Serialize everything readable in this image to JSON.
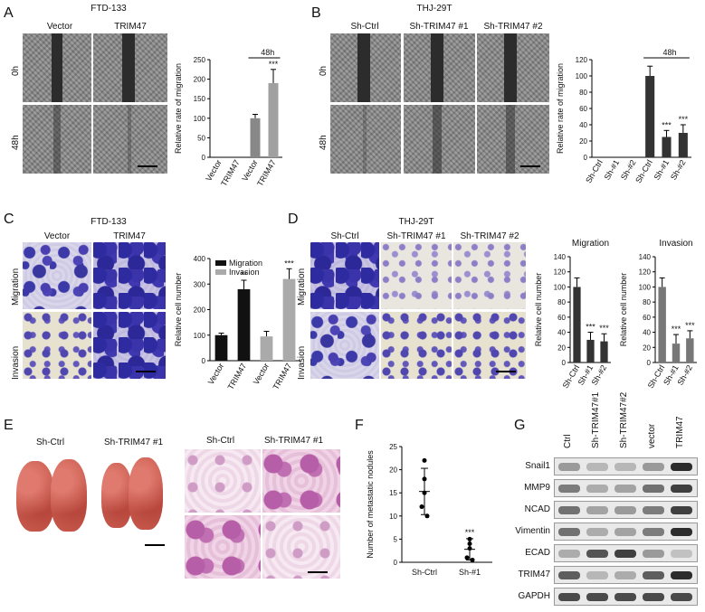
{
  "panels": {
    "A": {
      "letter": "A",
      "cell_line": "FTD-133",
      "col_labels": [
        "Vector",
        "TRIM47"
      ],
      "row_labels": [
        "0h",
        "48h"
      ],
      "chart_time": "48h"
    },
    "B": {
      "letter": "B",
      "cell_line": "THJ-29T",
      "col_labels": [
        "Sh-Ctrl",
        "Sh-TRIM47 #1",
        "Sh-TRIM47 #2"
      ],
      "row_labels": [
        "0h",
        "48h"
      ],
      "chart_time": "48h"
    },
    "C": {
      "letter": "C",
      "cell_line": "FTD-133",
      "col_labels": [
        "Vector",
        "TRIM47"
      ],
      "row_labels": [
        "Migration",
        "Invasion"
      ]
    },
    "D": {
      "letter": "D",
      "cell_line": "THJ-29T",
      "col_labels": [
        "Sh-Ctrl",
        "Sh-TRIM47 #1",
        "Sh-TRIM47 #2"
      ],
      "row_labels": [
        "Migration",
        "Invasion"
      ]
    },
    "E": {
      "letter": "E",
      "lung_labels": [
        "Sh-Ctrl",
        "Sh-TRIM47 #1"
      ],
      "he_labels": [
        "Sh-Ctrl",
        "Sh-TRIM47 #1"
      ]
    },
    "F": {
      "letter": "F"
    },
    "G": {
      "letter": "G",
      "lanes": [
        "Ctrl",
        "Sh-TRIM47#1",
        "Sh-TRIM47#2",
        "vector",
        "TRIM47"
      ],
      "proteins": [
        "Snail1",
        "MMP9",
        "NCAD",
        "Vimentin",
        "ECAD",
        "TRIM47",
        "GAPDH"
      ],
      "intensity": [
        [
          0.4,
          0.25,
          0.25,
          0.4,
          0.95
        ],
        [
          0.55,
          0.3,
          0.35,
          0.6,
          0.85
        ],
        [
          0.6,
          0.35,
          0.4,
          0.55,
          0.85
        ],
        [
          0.6,
          0.3,
          0.35,
          0.55,
          0.95
        ],
        [
          0.3,
          0.75,
          0.85,
          0.4,
          0.2
        ],
        [
          0.7,
          0.25,
          0.3,
          0.7,
          0.95
        ],
        [
          0.8,
          0.8,
          0.8,
          0.8,
          0.8
        ]
      ]
    }
  },
  "chart_data": [
    {
      "id": "A-chart",
      "type": "bar",
      "categories": [
        "Vector",
        "TRIM47",
        "Vector",
        "TRIM47"
      ],
      "values": [
        0,
        0,
        100,
        190
      ],
      "errors": [
        0,
        0,
        10,
        35
      ],
      "colors": [
        "#888888",
        "#888888",
        "#888888",
        "#a0a0a0"
      ],
      "significance": [
        "",
        "",
        "",
        "***"
      ],
      "group_label": "48h",
      "ylabel": "Relative rate of migration",
      "yticks": [
        0,
        50,
        100,
        150,
        200,
        250
      ],
      "ylim": [
        0,
        250
      ]
    },
    {
      "id": "B-chart",
      "type": "bar",
      "categories": [
        "Sh-Ctrl",
        "Sh-#1",
        "Sh-#2",
        "Sh-Ctrl",
        "Sh-#1",
        "Sh-#2"
      ],
      "values": [
        0,
        0,
        0,
        100,
        25,
        30
      ],
      "errors": [
        0,
        0,
        0,
        12,
        8,
        10
      ],
      "colors": [
        "#333333",
        "#333333",
        "#333333",
        "#333333",
        "#333333",
        "#333333"
      ],
      "significance": [
        "",
        "",
        "",
        "",
        "***",
        "***"
      ],
      "group_label": "48h",
      "ylabel": "Relative rate of migration",
      "yticks": [
        0,
        20,
        40,
        60,
        80,
        100,
        120
      ],
      "ylim": [
        0,
        120
      ]
    },
    {
      "id": "C-chart",
      "type": "bar",
      "categories": [
        "Vector",
        "TRIM47",
        "Vector",
        "TRIM47"
      ],
      "values": [
        100,
        280,
        95,
        320
      ],
      "errors": [
        8,
        35,
        20,
        40
      ],
      "colors": [
        "#111111",
        "#111111",
        "#aaaaaa",
        "#aaaaaa"
      ],
      "significance": [
        "",
        "**",
        "",
        "***"
      ],
      "legend": [
        {
          "name": "Migration",
          "color": "#111111"
        },
        {
          "name": "Invasion",
          "color": "#aaaaaa"
        }
      ],
      "ylabel": "Relative cell number",
      "yticks": [
        0,
        100,
        200,
        300,
        400
      ],
      "ylim": [
        0,
        400
      ]
    },
    {
      "id": "D-chart-mig",
      "type": "bar",
      "title": "Migration",
      "categories": [
        "Sh-Ctrl",
        "Sh-#1",
        "Sh-#2"
      ],
      "values": [
        100,
        30,
        28
      ],
      "errors": [
        12,
        10,
        10
      ],
      "colors": [
        "#333333",
        "#333333",
        "#333333"
      ],
      "significance": [
        "",
        "***",
        "***"
      ],
      "ylabel": "Relative cell number",
      "yticks": [
        0,
        20,
        40,
        60,
        80,
        100,
        120,
        140
      ],
      "ylim": [
        0,
        140
      ]
    },
    {
      "id": "D-chart-inv",
      "type": "bar",
      "title": "Invasion",
      "categories": [
        "Sh-Ctrl",
        "Sh-#1",
        "Sh-#2"
      ],
      "values": [
        100,
        25,
        32
      ],
      "errors": [
        12,
        12,
        10
      ],
      "colors": [
        "#777777",
        "#777777",
        "#777777"
      ],
      "significance": [
        "",
        "***",
        "***"
      ],
      "ylabel": "Relative cell number",
      "yticks": [
        0,
        20,
        40,
        60,
        80,
        100,
        120,
        140
      ],
      "ylim": [
        0,
        140
      ]
    },
    {
      "id": "F-chart",
      "type": "scatter",
      "categories": [
        "Sh-Ctrl",
        "Sh-#1"
      ],
      "points": [
        [
          22,
          18,
          15,
          12,
          10
        ],
        [
          5,
          4,
          3,
          1,
          0.5
        ]
      ],
      "means": [
        15.3,
        2.8
      ],
      "sds": [
        5,
        2.3
      ],
      "significance": [
        "",
        "***"
      ],
      "ylabel": "Number of  metastatic nodules",
      "yticks": [
        0,
        5,
        10,
        15,
        20,
        25
      ],
      "ylim": [
        0,
        25
      ]
    }
  ]
}
